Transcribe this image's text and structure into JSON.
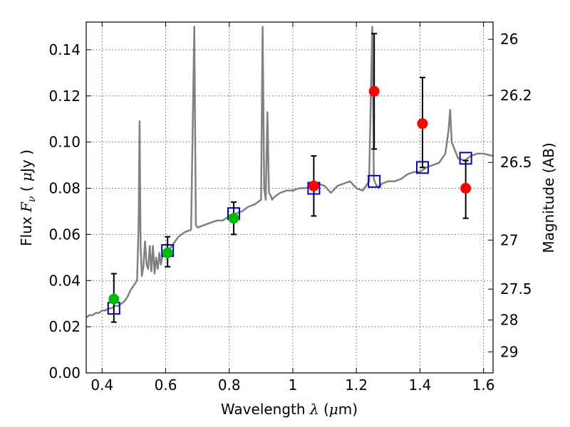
{
  "chart_data": {
    "type": "scatter",
    "xlabel": {
      "prefix": "Wavelength ",
      "symbol": "λ",
      "unit_open": " (",
      "unit_symbol": "μ",
      "unit_rest": "m)"
    },
    "ylabel": {
      "prefix": "Flux ",
      "symbol": "F",
      "subscript": "ν",
      "unit_open": "  ( ",
      "unit_symbol": "μ",
      "unit_rest": "Jy )"
    },
    "y2label": "Magnitude (AB)",
    "xlim": [
      0.35,
      1.63
    ],
    "ylim": [
      0.0,
      0.152
    ],
    "xticks": [
      {
        "value": 0.4,
        "label": "0.4"
      },
      {
        "value": 0.6,
        "label": "0.6"
      },
      {
        "value": 0.8,
        "label": "0.8"
      },
      {
        "value": 1.0,
        "label": "1"
      },
      {
        "value": 1.2,
        "label": "1.2"
      },
      {
        "value": 1.4,
        "label": "1.4"
      },
      {
        "value": 1.6,
        "label": "1.6"
      }
    ],
    "yticks": [
      {
        "value": 0.0,
        "label": "0.00"
      },
      {
        "value": 0.02,
        "label": "0.02"
      },
      {
        "value": 0.04,
        "label": "0.04"
      },
      {
        "value": 0.06,
        "label": "0.06"
      },
      {
        "value": 0.08,
        "label": "0.08"
      },
      {
        "value": 0.1,
        "label": "0.10"
      },
      {
        "value": 0.12,
        "label": "0.12"
      },
      {
        "value": 0.14,
        "label": "0.14"
      }
    ],
    "y2ticks": [
      {
        "label": "26",
        "mag": 26.0
      },
      {
        "label": "26.2",
        "mag": 26.2
      },
      {
        "label": "26.5",
        "mag": 26.5
      },
      {
        "label": "27",
        "mag": 27.0
      },
      {
        "label": "27.5",
        "mag": 27.5
      },
      {
        "label": "28",
        "mag": 28.0
      },
      {
        "label": "29",
        "mag": 29.0
      }
    ],
    "grid": true,
    "series": [
      {
        "kind": "line",
        "color": "#808080",
        "x": [
          0.35,
          0.36,
          0.37,
          0.38,
          0.39,
          0.4,
          0.41,
          0.42,
          0.43,
          0.44,
          0.45,
          0.46,
          0.47,
          0.48,
          0.49,
          0.5,
          0.51,
          0.515,
          0.518,
          0.521,
          0.525,
          0.53,
          0.535,
          0.54,
          0.545,
          0.55,
          0.555,
          0.56,
          0.565,
          0.57,
          0.575,
          0.58,
          0.585,
          0.59,
          0.6,
          0.62,
          0.64,
          0.66,
          0.68,
          0.69,
          0.695,
          0.7,
          0.72,
          0.74,
          0.76,
          0.78,
          0.8,
          0.82,
          0.84,
          0.86,
          0.88,
          0.9,
          0.905,
          0.91,
          0.915,
          0.92,
          0.925,
          0.93,
          0.935,
          0.94,
          0.96,
          0.98,
          1.0,
          1.02,
          1.04,
          1.06,
          1.08,
          1.1,
          1.12,
          1.14,
          1.16,
          1.18,
          1.2,
          1.22,
          1.24,
          1.25,
          1.255,
          1.26,
          1.27,
          1.28,
          1.3,
          1.32,
          1.34,
          1.36,
          1.38,
          1.4,
          1.42,
          1.44,
          1.46,
          1.48,
          1.49,
          1.495,
          1.5,
          1.52,
          1.54,
          1.56,
          1.58,
          1.6,
          1.63
        ],
        "y": [
          0.024,
          0.025,
          0.025,
          0.026,
          0.026,
          0.027,
          0.027,
          0.028,
          0.028,
          0.029,
          0.029,
          0.03,
          0.031,
          0.033,
          0.036,
          0.038,
          0.04,
          0.065,
          0.109,
          0.055,
          0.042,
          0.046,
          0.057,
          0.047,
          0.045,
          0.055,
          0.044,
          0.055,
          0.043,
          0.05,
          0.045,
          0.052,
          0.047,
          0.051,
          0.052,
          0.055,
          0.059,
          0.061,
          0.062,
          0.15,
          0.064,
          0.063,
          0.064,
          0.065,
          0.066,
          0.066,
          0.068,
          0.069,
          0.07,
          0.072,
          0.073,
          0.075,
          0.15,
          0.08,
          0.075,
          0.113,
          0.078,
          0.077,
          0.075,
          0.076,
          0.078,
          0.079,
          0.079,
          0.08,
          0.08,
          0.081,
          0.082,
          0.081,
          0.078,
          0.081,
          0.082,
          0.083,
          0.08,
          0.079,
          0.083,
          0.15,
          0.084,
          0.082,
          0.08,
          0.082,
          0.083,
          0.083,
          0.084,
          0.086,
          0.087,
          0.087,
          0.089,
          0.09,
          0.091,
          0.095,
          0.105,
          0.114,
          0.1,
          0.093,
          0.092,
          0.094,
          0.095,
          0.095,
          0.094
        ]
      },
      {
        "kind": "box-markers",
        "color": "#0000cc",
        "x": [
          0.437,
          0.606,
          0.814,
          1.066,
          1.256,
          1.408,
          1.544
        ],
        "y": [
          0.028,
          0.053,
          0.069,
          0.08,
          0.083,
          0.089,
          0.093
        ]
      },
      {
        "kind": "error-points",
        "color": "#00bb00",
        "x": [
          0.437,
          0.606,
          0.814
        ],
        "y": [
          0.032,
          0.052,
          0.067
        ],
        "yerr_low": [
          0.01,
          0.006,
          0.007
        ],
        "yerr_high": [
          0.011,
          0.007,
          0.007
        ]
      },
      {
        "kind": "error-points",
        "color": "#ff0000",
        "x": [
          1.066,
          1.256,
          1.408,
          1.544
        ],
        "y": [
          0.081,
          0.122,
          0.108,
          0.08
        ],
        "yerr_low": [
          0.013,
          0.025,
          0.019,
          0.013
        ],
        "yerr_high": [
          0.013,
          0.025,
          0.02,
          0.012
        ]
      }
    ]
  }
}
